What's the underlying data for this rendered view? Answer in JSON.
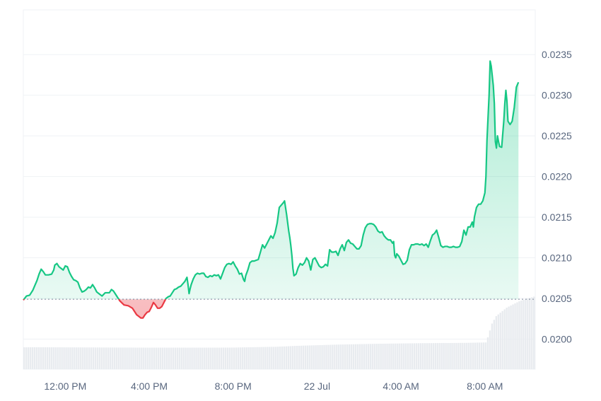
{
  "chart_data": {
    "type": "area",
    "baseline": 0.02049,
    "y_ticks": [
      "0.0200",
      "0.0205",
      "0.0210",
      "0.0215",
      "0.0220",
      "0.0225",
      "0.0230",
      "0.0235"
    ],
    "x_ticks": [
      {
        "label": "12:00 PM",
        "hour": 2
      },
      {
        "label": "4:00 PM",
        "hour": 6
      },
      {
        "label": "8:00 PM",
        "hour": 10
      },
      {
        "label": "22 Jul",
        "hour": 14
      },
      {
        "label": "4:00 AM",
        "hour": 18
      },
      {
        "label": "8:00 AM",
        "hour": 22
      }
    ],
    "xlim_hours": [
      0,
      24.4
    ],
    "ylim": [
      0.01963,
      0.02405
    ],
    "price": [
      [
        0.0,
        0.02048
      ],
      [
        0.15,
        0.02053
      ],
      [
        0.3,
        0.02054
      ],
      [
        0.45,
        0.0206
      ],
      [
        0.55,
        0.02066
      ],
      [
        0.65,
        0.02072
      ],
      [
        0.75,
        0.0208
      ],
      [
        0.85,
        0.02086
      ],
      [
        0.95,
        0.02083
      ],
      [
        1.05,
        0.02079
      ],
      [
        1.2,
        0.02079
      ],
      [
        1.35,
        0.0208
      ],
      [
        1.45,
        0.02085
      ],
      [
        1.5,
        0.02091
      ],
      [
        1.6,
        0.02093
      ],
      [
        1.7,
        0.02089
      ],
      [
        1.8,
        0.02087
      ],
      [
        1.9,
        0.02085
      ],
      [
        2.0,
        0.0209
      ],
      [
        2.1,
        0.02089
      ],
      [
        2.2,
        0.02082
      ],
      [
        2.3,
        0.02077
      ],
      [
        2.4,
        0.02073
      ],
      [
        2.5,
        0.02072
      ],
      [
        2.6,
        0.0207
      ],
      [
        2.7,
        0.02063
      ],
      [
        2.8,
        0.02058
      ],
      [
        2.9,
        0.02059
      ],
      [
        3.0,
        0.02061
      ],
      [
        3.1,
        0.02064
      ],
      [
        3.2,
        0.02063
      ],
      [
        3.3,
        0.02067
      ],
      [
        3.4,
        0.02063
      ],
      [
        3.5,
        0.02058
      ],
      [
        3.6,
        0.02056
      ],
      [
        3.75,
        0.02053
      ],
      [
        3.9,
        0.02057
      ],
      [
        4.0,
        0.02057
      ],
      [
        4.1,
        0.02057
      ],
      [
        4.2,
        0.02061
      ],
      [
        4.3,
        0.02059
      ],
      [
        4.4,
        0.02055
      ],
      [
        4.5,
        0.02051
      ],
      [
        4.6,
        0.02047
      ],
      [
        4.8,
        0.02042
      ],
      [
        5.0,
        0.02041
      ],
      [
        5.2,
        0.02038
      ],
      [
        5.3,
        0.02034
      ],
      [
        5.4,
        0.0203
      ],
      [
        5.5,
        0.02028
      ],
      [
        5.6,
        0.02026
      ],
      [
        5.7,
        0.02026
      ],
      [
        5.8,
        0.0203
      ],
      [
        5.9,
        0.02033
      ],
      [
        6.0,
        0.02034
      ],
      [
        6.1,
        0.02039
      ],
      [
        6.2,
        0.02045
      ],
      [
        6.3,
        0.02042
      ],
      [
        6.4,
        0.02038
      ],
      [
        6.5,
        0.02038
      ],
      [
        6.6,
        0.0204
      ],
      [
        6.7,
        0.02045
      ],
      [
        6.8,
        0.0205
      ],
      [
        6.9,
        0.02052
      ],
      [
        7.0,
        0.02053
      ],
      [
        7.1,
        0.02057
      ],
      [
        7.2,
        0.02061
      ],
      [
        7.3,
        0.02062
      ],
      [
        7.4,
        0.02064
      ],
      [
        7.5,
        0.02065
      ],
      [
        7.6,
        0.02068
      ],
      [
        7.7,
        0.02071
      ],
      [
        7.8,
        0.02076
      ],
      [
        7.85,
        0.02067
      ],
      [
        7.9,
        0.02056
      ],
      [
        7.95,
        0.02062
      ],
      [
        8.0,
        0.02067
      ],
      [
        8.1,
        0.02074
      ],
      [
        8.2,
        0.02079
      ],
      [
        8.3,
        0.02081
      ],
      [
        8.4,
        0.0208
      ],
      [
        8.5,
        0.02081
      ],
      [
        8.6,
        0.02081
      ],
      [
        8.7,
        0.02077
      ],
      [
        8.8,
        0.02076
      ],
      [
        8.9,
        0.02078
      ],
      [
        9.0,
        0.02077
      ],
      [
        9.1,
        0.02079
      ],
      [
        9.2,
        0.02078
      ],
      [
        9.3,
        0.02079
      ],
      [
        9.4,
        0.02074
      ],
      [
        9.5,
        0.02081
      ],
      [
        9.6,
        0.02088
      ],
      [
        9.7,
        0.02092
      ],
      [
        9.8,
        0.02093
      ],
      [
        9.9,
        0.02092
      ],
      [
        10.0,
        0.02095
      ],
      [
        10.1,
        0.0209
      ],
      [
        10.2,
        0.02086
      ],
      [
        10.3,
        0.0208
      ],
      [
        10.4,
        0.02081
      ],
      [
        10.5,
        0.02073
      ],
      [
        10.55,
        0.02071
      ],
      [
        10.6,
        0.02078
      ],
      [
        10.7,
        0.02085
      ],
      [
        10.8,
        0.02094
      ],
      [
        10.9,
        0.02096
      ],
      [
        11.0,
        0.02096
      ],
      [
        11.1,
        0.02097
      ],
      [
        11.2,
        0.02098
      ],
      [
        11.3,
        0.02107
      ],
      [
        11.4,
        0.02116
      ],
      [
        11.5,
        0.02112
      ],
      [
        11.6,
        0.02117
      ],
      [
        11.7,
        0.02122
      ],
      [
        11.8,
        0.02127
      ],
      [
        11.9,
        0.02124
      ],
      [
        12.0,
        0.02131
      ],
      [
        12.1,
        0.02143
      ],
      [
        12.2,
        0.02162
      ],
      [
        12.3,
        0.02165
      ],
      [
        12.4,
        0.02168
      ],
      [
        12.45,
        0.0217
      ],
      [
        12.55,
        0.02153
      ],
      [
        12.65,
        0.02133
      ],
      [
        12.7,
        0.02125
      ],
      [
        12.75,
        0.02115
      ],
      [
        12.8,
        0.02103
      ],
      [
        12.85,
        0.02087
      ],
      [
        12.9,
        0.02078
      ],
      [
        13.0,
        0.0208
      ],
      [
        13.1,
        0.02088
      ],
      [
        13.2,
        0.02093
      ],
      [
        13.3,
        0.02091
      ],
      [
        13.4,
        0.02094
      ],
      [
        13.5,
        0.021
      ],
      [
        13.6,
        0.02096
      ],
      [
        13.7,
        0.02085
      ],
      [
        13.8,
        0.02098
      ],
      [
        13.9,
        0.021
      ],
      [
        14.0,
        0.02095
      ],
      [
        14.1,
        0.0209
      ],
      [
        14.2,
        0.02088
      ],
      [
        14.3,
        0.02089
      ],
      [
        14.4,
        0.02092
      ],
      [
        14.5,
        0.0209
      ],
      [
        14.6,
        0.0211
      ],
      [
        14.7,
        0.02107
      ],
      [
        14.8,
        0.02107
      ],
      [
        14.9,
        0.02108
      ],
      [
        15.0,
        0.02103
      ],
      [
        15.1,
        0.02111
      ],
      [
        15.2,
        0.02116
      ],
      [
        15.3,
        0.02109
      ],
      [
        15.4,
        0.02119
      ],
      [
        15.5,
        0.02122
      ],
      [
        15.6,
        0.02118
      ],
      [
        15.7,
        0.02117
      ],
      [
        15.8,
        0.02114
      ],
      [
        15.9,
        0.02111
      ],
      [
        16.0,
        0.02111
      ],
      [
        16.1,
        0.02115
      ],
      [
        16.2,
        0.02128
      ],
      [
        16.3,
        0.02137
      ],
      [
        16.4,
        0.02141
      ],
      [
        16.5,
        0.02142
      ],
      [
        16.6,
        0.02142
      ],
      [
        16.7,
        0.02141
      ],
      [
        16.8,
        0.02138
      ],
      [
        16.9,
        0.02133
      ],
      [
        17.0,
        0.02131
      ],
      [
        17.1,
        0.02132
      ],
      [
        17.2,
        0.02127
      ],
      [
        17.3,
        0.02124
      ],
      [
        17.4,
        0.02122
      ],
      [
        17.5,
        0.02122
      ],
      [
        17.6,
        0.02118
      ],
      [
        17.65,
        0.0212
      ],
      [
        17.7,
        0.02103
      ],
      [
        17.75,
        0.021
      ],
      [
        17.8,
        0.02105
      ],
      [
        17.9,
        0.02102
      ],
      [
        18.0,
        0.02097
      ],
      [
        18.1,
        0.02092
      ],
      [
        18.2,
        0.02093
      ],
      [
        18.3,
        0.02097
      ],
      [
        18.4,
        0.0211
      ],
      [
        18.5,
        0.02116
      ],
      [
        18.6,
        0.02116
      ],
      [
        18.7,
        0.02117
      ],
      [
        18.8,
        0.02117
      ],
      [
        18.9,
        0.02116
      ],
      [
        19.0,
        0.02117
      ],
      [
        19.1,
        0.02115
      ],
      [
        19.2,
        0.02117
      ],
      [
        19.3,
        0.02113
      ],
      [
        19.4,
        0.02121
      ],
      [
        19.5,
        0.02128
      ],
      [
        19.6,
        0.0213
      ],
      [
        19.7,
        0.02134
      ],
      [
        19.8,
        0.02125
      ],
      [
        19.9,
        0.02115
      ],
      [
        20.0,
        0.02113
      ],
      [
        20.1,
        0.02114
      ],
      [
        20.2,
        0.02114
      ],
      [
        20.3,
        0.02113
      ],
      [
        20.4,
        0.02113
      ],
      [
        20.5,
        0.02114
      ],
      [
        20.6,
        0.02113
      ],
      [
        20.7,
        0.02113
      ],
      [
        20.8,
        0.02114
      ],
      [
        20.9,
        0.0212
      ],
      [
        21.0,
        0.02134
      ],
      [
        21.1,
        0.02128
      ],
      [
        21.2,
        0.02138
      ],
      [
        21.3,
        0.02138
      ],
      [
        21.4,
        0.02144
      ],
      [
        21.45,
        0.02138
      ],
      [
        21.5,
        0.0215
      ],
      [
        21.6,
        0.02162
      ],
      [
        21.7,
        0.02166
      ],
      [
        21.8,
        0.02166
      ],
      [
        21.9,
        0.0217
      ],
      [
        22.0,
        0.0218
      ],
      [
        22.05,
        0.022
      ],
      [
        22.1,
        0.02245
      ],
      [
        22.2,
        0.023
      ],
      [
        22.25,
        0.02342
      ],
      [
        22.3,
        0.02336
      ],
      [
        22.4,
        0.02312
      ],
      [
        22.45,
        0.0229
      ],
      [
        22.5,
        0.02243
      ],
      [
        22.55,
        0.02235
      ],
      [
        22.6,
        0.0225
      ],
      [
        22.65,
        0.02243
      ],
      [
        22.7,
        0.02237
      ],
      [
        22.8,
        0.02236
      ],
      [
        22.9,
        0.02268
      ],
      [
        22.95,
        0.0229
      ],
      [
        23.0,
        0.02306
      ],
      [
        23.05,
        0.02293
      ],
      [
        23.1,
        0.02268
      ],
      [
        23.2,
        0.02264
      ],
      [
        23.3,
        0.02268
      ],
      [
        23.4,
        0.02285
      ],
      [
        23.5,
        0.0231
      ],
      [
        23.6,
        0.02316
      ]
    ],
    "volume_rel": [
      [
        0.0,
        0.206
      ],
      [
        0.5,
        0.207
      ],
      [
        3.0,
        0.205
      ],
      [
        6.0,
        0.203
      ],
      [
        9.0,
        0.203
      ],
      [
        10.0,
        0.204
      ],
      [
        12.0,
        0.211
      ],
      [
        13.0,
        0.22
      ],
      [
        15.0,
        0.232
      ],
      [
        17.0,
        0.24
      ],
      [
        19.0,
        0.245
      ],
      [
        21.0,
        0.248
      ],
      [
        22.0,
        0.252
      ],
      [
        22.1,
        0.3
      ],
      [
        22.3,
        0.43
      ],
      [
        22.5,
        0.5
      ],
      [
        23.0,
        0.58
      ],
      [
        23.6,
        0.64
      ],
      [
        23.9,
        0.66
      ],
      [
        24.4,
        0.69
      ]
    ],
    "colors": {
      "up": "#16c784",
      "down": "#ea3943",
      "grid": "#eff2f5",
      "tick": "#58667e",
      "volume": "#e8ebef"
    }
  }
}
